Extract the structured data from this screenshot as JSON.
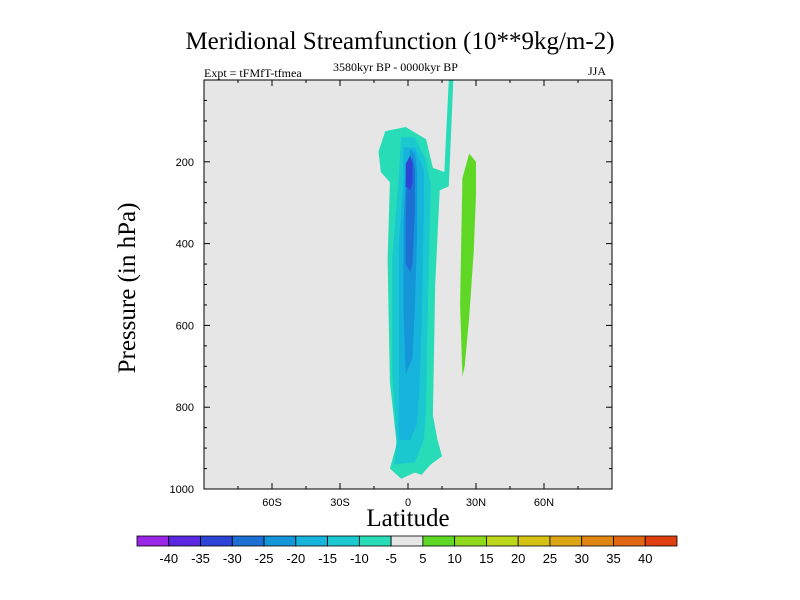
{
  "chart_data": {
    "type": "contour",
    "title": "Meridional Streamfunction (10**9kg/m-2)",
    "experiment": "Expt = tFMfT-tfmea",
    "period": "3580kyr BP - 0000kyr BP",
    "season": "JJA",
    "xlabel": "Latitude",
    "ylabel": "Pressure (in hPa)",
    "xlim": [
      -90,
      90
    ],
    "ylim": [
      1000,
      0
    ],
    "x_ticks": [
      -60,
      -30,
      0,
      30,
      60
    ],
    "x_tick_labels": [
      "60S",
      "30S",
      "0",
      "30N",
      "60N"
    ],
    "y_ticks": [
      200,
      400,
      600,
      800,
      1000
    ],
    "y_tick_labels": [
      "200",
      "400",
      "600",
      "800",
      "1000"
    ],
    "background_color": "#e6e6e6",
    "contour_levels": [
      -40,
      -35,
      -30,
      -25,
      -20,
      -15,
      -10,
      -5,
      5,
      10,
      15,
      20,
      25,
      30,
      35,
      40
    ],
    "colorbar": {
      "labels": [
        "-40",
        "-35",
        "-30",
        "-25",
        "-20",
        "-15",
        "-10",
        "-5",
        "5",
        "10",
        "15",
        "20",
        "25",
        "30",
        "35",
        "40"
      ],
      "colors": [
        "#9b27e6",
        "#5a28e0",
        "#2e44d6",
        "#1e6fd4",
        "#1596d8",
        "#16b4dc",
        "#1ac9cf",
        "#28dcb8",
        "#e6e6e6",
        "#5ed825",
        "#8ed81e",
        "#bcd61a",
        "#d6c115",
        "#dba514",
        "#df8612",
        "#e06611",
        "#e0400f"
      ]
    },
    "regions": [
      {
        "name": "negative cell (-5 to -10)",
        "value": -7.5,
        "color": "#28dcb8",
        "outline": [
          [
            -8,
            950
          ],
          [
            -5,
            890
          ],
          [
            -8,
            740
          ],
          [
            -9,
            440
          ],
          [
            -8,
            250
          ],
          [
            -12,
            225
          ],
          [
            -13,
            175
          ],
          [
            -10,
            125
          ],
          [
            -1,
            115
          ],
          [
            8,
            145
          ],
          [
            11,
            215
          ],
          [
            16,
            225
          ],
          [
            18,
            0
          ],
          [
            20,
            0
          ],
          [
            18,
            260
          ],
          [
            14,
            270
          ],
          [
            12,
            500
          ],
          [
            11,
            820
          ],
          [
            13,
            880
          ],
          [
            15,
            920
          ],
          [
            10,
            940
          ],
          [
            6,
            965
          ],
          [
            3,
            960
          ],
          [
            -3,
            975
          ]
        ]
      },
      {
        "name": "negative cell (-10 to -15)",
        "value": -12.5,
        "color": "#1ac9cf",
        "outline": [
          [
            -6,
            940
          ],
          [
            -5,
            880
          ],
          [
            -7,
            720
          ],
          [
            -7,
            440
          ],
          [
            -4,
            230
          ],
          [
            -3,
            140
          ],
          [
            3,
            140
          ],
          [
            8,
            195
          ],
          [
            10,
            260
          ],
          [
            9,
            500
          ],
          [
            8,
            800
          ],
          [
            7,
            880
          ],
          [
            3,
            935
          ]
        ]
      },
      {
        "name": "negative cell (-15 to -20)",
        "value": -17.5,
        "color": "#16b4dc",
        "outline": [
          [
            -4,
            880
          ],
          [
            -4,
            700
          ],
          [
            -4,
            400
          ],
          [
            -2,
            240
          ],
          [
            -2,
            165
          ],
          [
            3,
            165
          ],
          [
            7,
            220
          ],
          [
            7,
            320
          ],
          [
            6,
            600
          ],
          [
            5,
            760
          ],
          [
            4,
            840
          ],
          [
            1,
            880
          ]
        ]
      },
      {
        "name": "negative cell (-20 to -25)",
        "value": -22.5,
        "color": "#1596d8",
        "outline": [
          [
            -1,
            720
          ],
          [
            -2,
            560
          ],
          [
            -2,
            350
          ],
          [
            -1,
            230
          ],
          [
            1,
            170
          ],
          [
            3,
            180
          ],
          [
            4,
            220
          ],
          [
            4,
            380
          ],
          [
            3,
            560
          ],
          [
            2,
            680
          ]
        ]
      },
      {
        "name": "negative cell (-25 to -30)",
        "value": -27.5,
        "color": "#1e6fd4",
        "outline": [
          [
            -1,
            450
          ],
          [
            -1,
            300
          ],
          [
            0,
            210
          ],
          [
            2,
            190
          ],
          [
            3,
            220
          ],
          [
            3,
            320
          ],
          [
            2,
            450
          ],
          [
            1,
            470
          ]
        ]
      },
      {
        "name": "negative cell core (-30 to -35)",
        "value": -32.5,
        "color": "#2e44d6",
        "outline": [
          [
            -1,
            260
          ],
          [
            -1,
            205
          ],
          [
            1,
            185
          ],
          [
            2,
            205
          ],
          [
            2,
            250
          ],
          [
            1,
            270
          ]
        ]
      },
      {
        "name": "positive cell (5 to 10)",
        "value": 7.5,
        "color": "#5ed825",
        "outline": [
          [
            24,
            725
          ],
          [
            23,
            550
          ],
          [
            24,
            240
          ],
          [
            27,
            180
          ],
          [
            30,
            200
          ],
          [
            30,
            280
          ],
          [
            29,
            420
          ],
          [
            27,
            580
          ],
          [
            25,
            700
          ]
        ]
      }
    ]
  }
}
